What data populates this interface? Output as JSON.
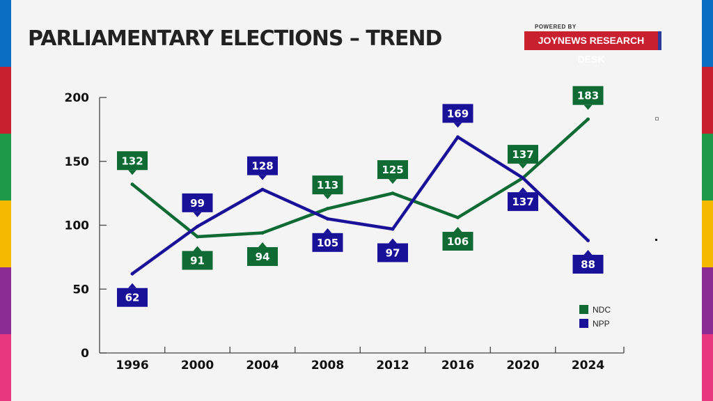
{
  "header": {
    "title": "PARLIAMENTARY ELECTIONS – TREND",
    "powered_by": "POWERED BY",
    "brand": "JOYNEWS RESEARCH DESK"
  },
  "stripe_colors": [
    "#0a6fc2",
    "#c8202f",
    "#1f9a4a",
    "#f6b800",
    "#8a2c93",
    "#e8377f"
  ],
  "chart_data": {
    "type": "line",
    "x": [
      "1996",
      "2000",
      "2004",
      "2008",
      "2012",
      "2016",
      "2020",
      "2024"
    ],
    "ylim": [
      0,
      200
    ],
    "yticks": [
      0,
      50,
      100,
      150,
      200
    ],
    "grid": false,
    "legend_position": "bottom-right",
    "series": [
      {
        "name": "NDC",
        "color": "#0f6b33",
        "values": [
          132,
          91,
          94,
          113,
          125,
          106,
          137,
          183
        ]
      },
      {
        "name": "NPP",
        "color": "#1a1199",
        "values": [
          62,
          99,
          128,
          105,
          97,
          169,
          137,
          88
        ]
      }
    ]
  }
}
